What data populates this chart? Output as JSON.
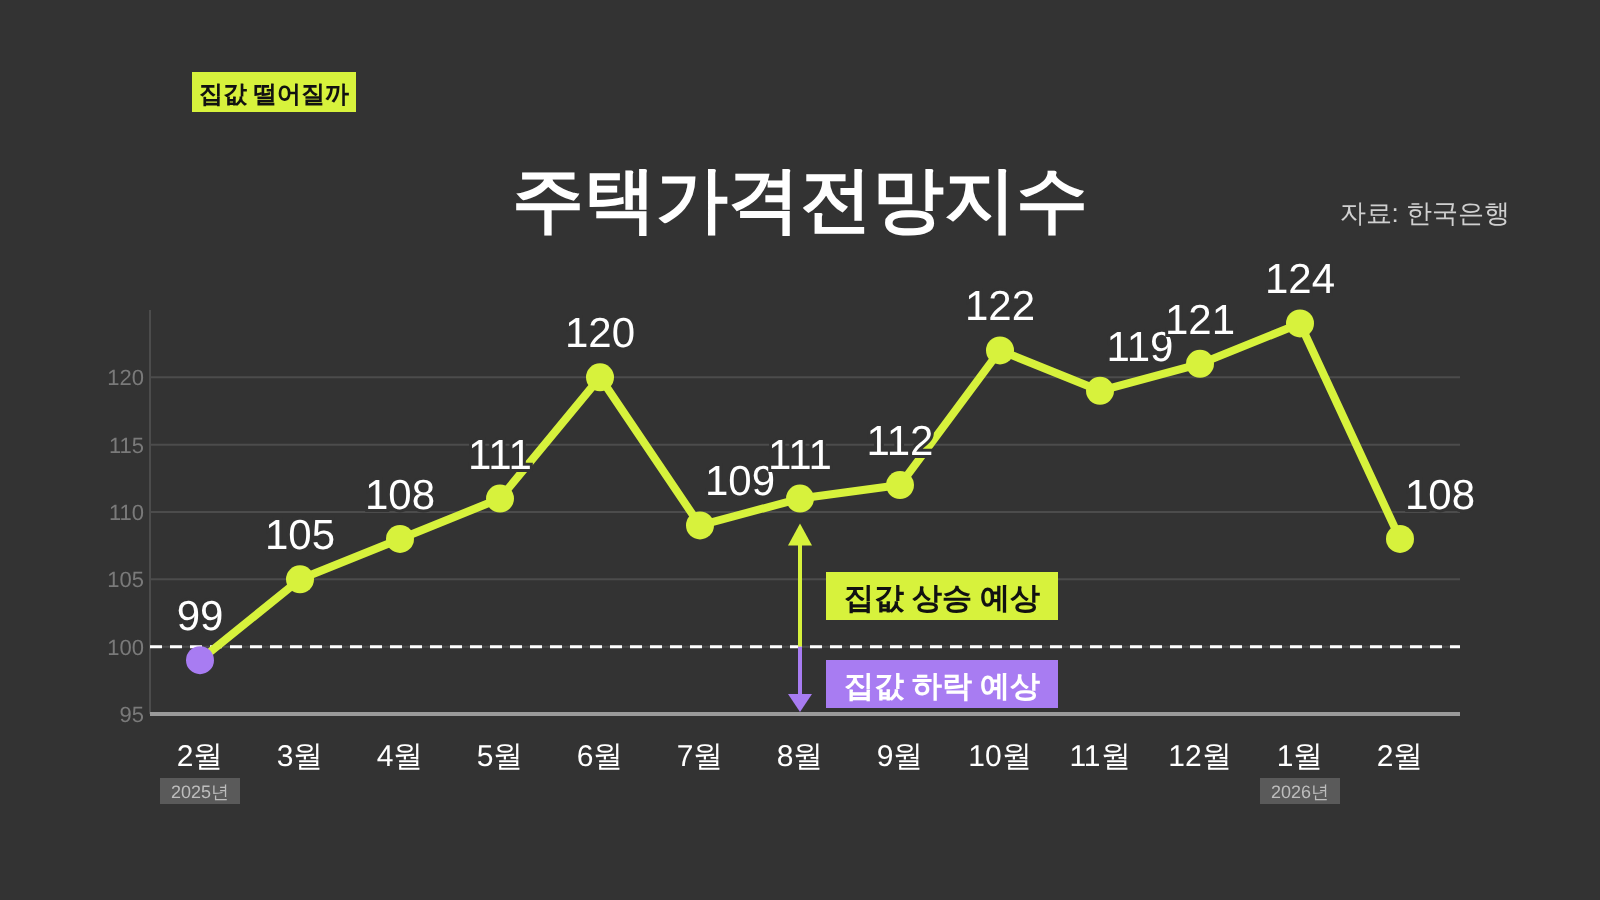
{
  "chart_data": {
    "type": "line",
    "title": "주택가격전망지수",
    "subtitle": "집값 떨어질까",
    "categories": [
      "2월",
      "3월",
      "4월",
      "5월",
      "6월",
      "7월",
      "8월",
      "9월",
      "10월",
      "11월",
      "12월",
      "1월",
      "2월"
    ],
    "series": [
      {
        "color": "#d7f23c",
        "colors": [
          "#a87cf2",
          "#d7f23c",
          "#d7f23c",
          "#d7f23c",
          "#d7f23c",
          "#d7f23c",
          "#d7f23c",
          "#d7f23c",
          "#d7f23c",
          "#d7f23c",
          "#d7f23c",
          "#d7f23c",
          "#d7f23c"
        ],
        "values": [
          99,
          105,
          108,
          111,
          120,
          109,
          111,
          112,
          122,
          119,
          121,
          124,
          108
        ]
      }
    ],
    "ylim": [
      95,
      125
    ],
    "yticks": [
      95,
      100,
      105,
      110,
      115,
      120
    ],
    "grid": "y",
    "marker": "circle",
    "line_style": "solid",
    "data_labels": true,
    "ref_lines": [
      {
        "axis": "y",
        "value": 100,
        "color": "#ffffff",
        "line_style": "dashed"
      }
    ],
    "annotations": [
      "자료: 한국은행",
      "집값 상승 예상",
      "집값 하락 예상",
      "2025년",
      "2026년"
    ]
  }
}
